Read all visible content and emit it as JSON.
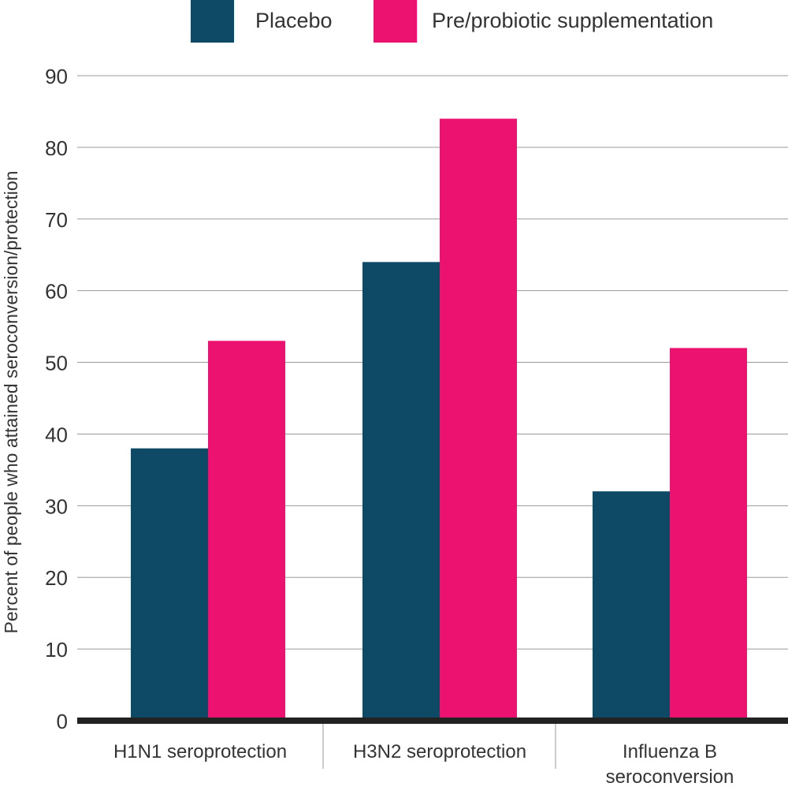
{
  "chart_data": {
    "type": "bar",
    "title": "",
    "xlabel": "",
    "ylabel": "Percent of people who attained seroconversion/protection",
    "ylim": [
      0,
      90
    ],
    "yticks": [
      0,
      10,
      20,
      30,
      40,
      50,
      60,
      70,
      80,
      90
    ],
    "grid": true,
    "legend_position": "top",
    "categories": [
      [
        "H1N1 seroprotection"
      ],
      [
        "H3N2 seroprotection"
      ],
      [
        "Influenza B",
        "seroconversion"
      ]
    ],
    "series": [
      {
        "name": "Placebo",
        "color": "#0e4a66",
        "values": [
          38,
          64,
          32
        ]
      },
      {
        "name": "Pre/probiotic supplementation",
        "color": "#ec1370",
        "values": [
          53,
          84,
          52
        ]
      }
    ]
  }
}
